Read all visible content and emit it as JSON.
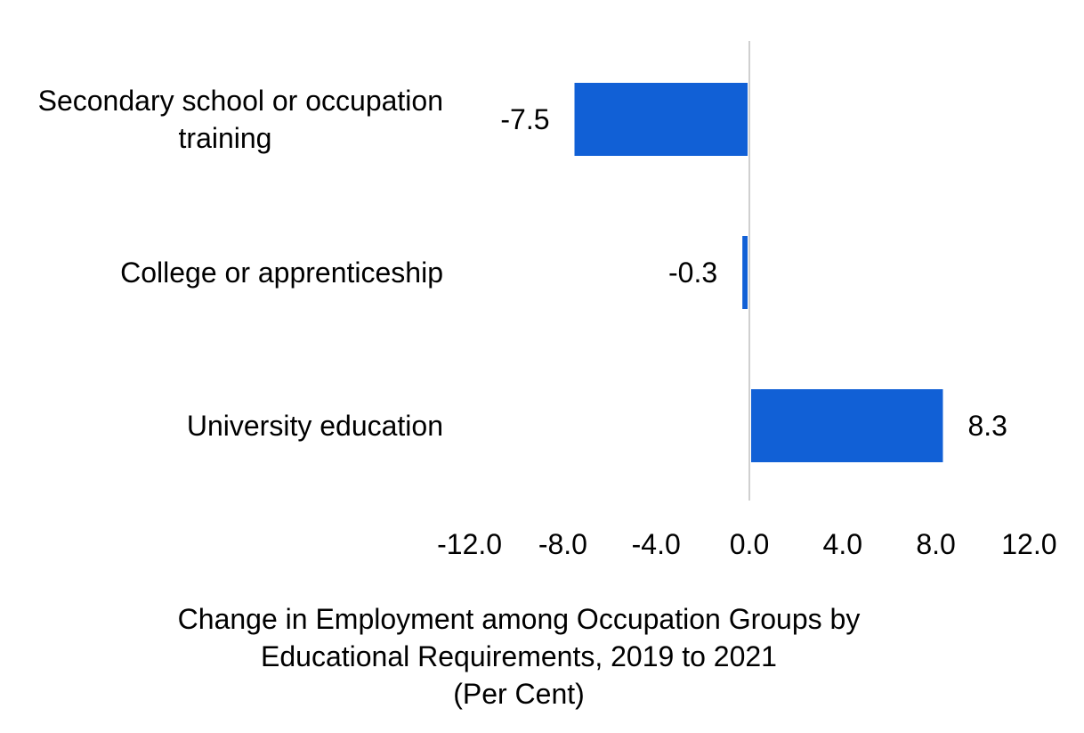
{
  "chart_data": {
    "type": "bar",
    "orientation": "horizontal",
    "categories": [
      [
        "Secondary school or occupation",
        "training"
      ],
      [
        "College or apprenticeship"
      ],
      [
        "University education"
      ]
    ],
    "values": [
      -7.5,
      -0.3,
      8.3
    ],
    "value_labels": [
      "-7.5",
      "-0.3",
      "8.3"
    ],
    "xlim": [
      -12.0,
      12.0
    ],
    "ticks": [
      -12.0,
      -8.0,
      -4.0,
      0.0,
      4.0,
      8.0,
      12.0
    ],
    "tick_labels": [
      "-12.0",
      "-8.0",
      "-4.0",
      "0.0",
      "4.0",
      "8.0",
      "12.0"
    ],
    "xlabel": [
      "Change in Employment among Occupation Groups by",
      "Educational Requirements, 2019 to 2021",
      "(Per Cent)"
    ],
    "ylabel": "",
    "title": "",
    "grid": false,
    "legend": "none",
    "colors": {
      "bar": "#1160D6",
      "zero_line": "#D0D0D0"
    }
  }
}
